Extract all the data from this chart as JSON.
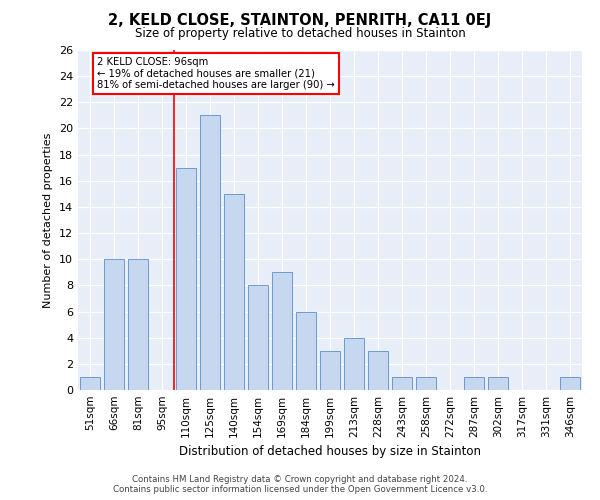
{
  "title": "2, KELD CLOSE, STAINTON, PENRITH, CA11 0EJ",
  "subtitle": "Size of property relative to detached houses in Stainton",
  "xlabel": "Distribution of detached houses by size in Stainton",
  "ylabel": "Number of detached properties",
  "bar_labels": [
    "51sqm",
    "66sqm",
    "81sqm",
    "95sqm",
    "110sqm",
    "125sqm",
    "140sqm",
    "154sqm",
    "169sqm",
    "184sqm",
    "199sqm",
    "213sqm",
    "228sqm",
    "243sqm",
    "258sqm",
    "272sqm",
    "287sqm",
    "302sqm",
    "317sqm",
    "331sqm",
    "346sqm"
  ],
  "bar_values": [
    1,
    10,
    10,
    0,
    17,
    21,
    15,
    8,
    9,
    6,
    3,
    4,
    3,
    1,
    1,
    0,
    1,
    1,
    0,
    0,
    1
  ],
  "bar_color": "#c5d8f0",
  "bar_edge_color": "#5b8fc9",
  "annotation_box_text": "2 KELD CLOSE: 96sqm\n← 19% of detached houses are smaller (21)\n81% of semi-detached houses are larger (90) →",
  "red_line_x": 3.5,
  "ylim": [
    0,
    26
  ],
  "yticks": [
    0,
    2,
    4,
    6,
    8,
    10,
    12,
    14,
    16,
    18,
    20,
    22,
    24,
    26
  ],
  "footer_line1": "Contains HM Land Registry data © Crown copyright and database right 2024.",
  "footer_line2": "Contains public sector information licensed under the Open Government Licence v3.0.",
  "plot_background": "#e8eef8",
  "fig_background": "#ffffff",
  "bar_width": 0.85
}
